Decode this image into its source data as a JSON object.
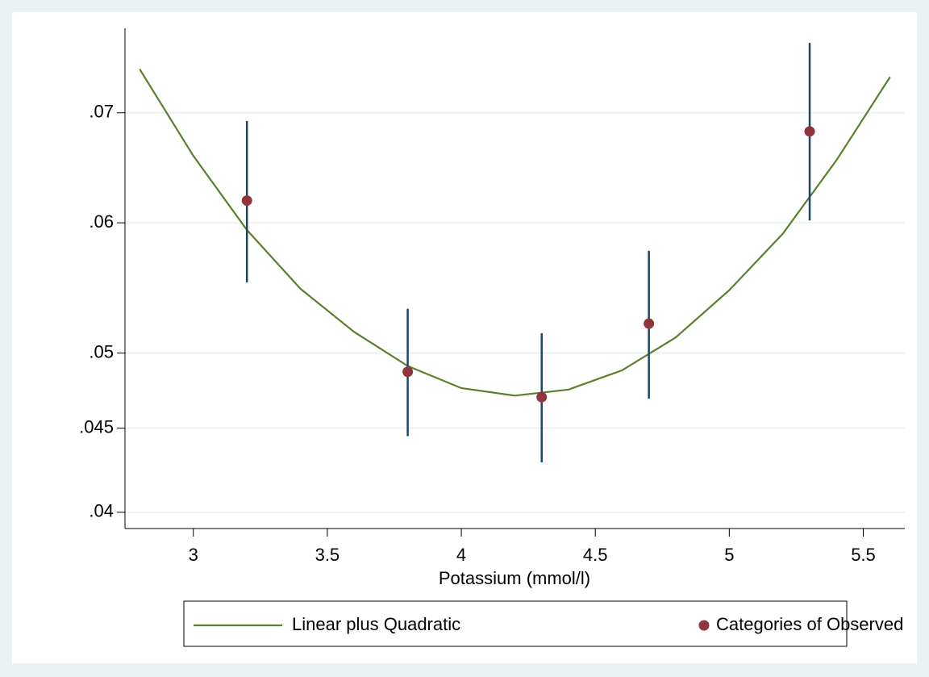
{
  "chart_data": {
    "type": "line",
    "x_label": "Potassium (mmol/l)",
    "xlim": [
      2.745,
      5.655
    ],
    "xticks": [
      3,
      3.5,
      4,
      4.5,
      5,
      5.5
    ],
    "ylim": [
      0.0391,
      0.0788
    ],
    "ylog": true,
    "yticks": [
      {
        "value": 0.04,
        "label": ".04"
      },
      {
        "value": 0.045,
        "label": ".045"
      },
      {
        "value": 0.05,
        "label": ".05"
      },
      {
        "value": 0.06,
        "label": ".06"
      },
      {
        "value": 0.07,
        "label": ".07"
      }
    ],
    "grid": true,
    "series": [
      {
        "name": "Linear plus Quadratic",
        "type": "line",
        "color": "#5c7f2c",
        "x": [
          2.8,
          3.0,
          3.2,
          3.4,
          3.6,
          3.8,
          4.0,
          4.2,
          4.4,
          4.6,
          4.8,
          5.0,
          5.2,
          5.4,
          5.6
        ],
        "values": [
          0.0744,
          0.0659,
          0.0594,
          0.0547,
          0.0515,
          0.0491,
          0.0476,
          0.0471,
          0.0475,
          0.0488,
          0.0511,
          0.0546,
          0.0591,
          0.0655,
          0.0736
        ]
      },
      {
        "name": "Categories of Observed",
        "type": "scatter",
        "color": "#90353b",
        "error_color": "#1a476f",
        "x": [
          3.2,
          3.8,
          4.3,
          4.7,
          5.3
        ],
        "values": [
          0.0619,
          0.0487,
          0.047,
          0.0521,
          0.0682
        ],
        "upper": [
          0.0692,
          0.0532,
          0.0514,
          0.0577,
          0.0772
        ],
        "lower": [
          0.0552,
          0.0445,
          0.0429,
          0.0469,
          0.0602
        ]
      }
    ]
  }
}
